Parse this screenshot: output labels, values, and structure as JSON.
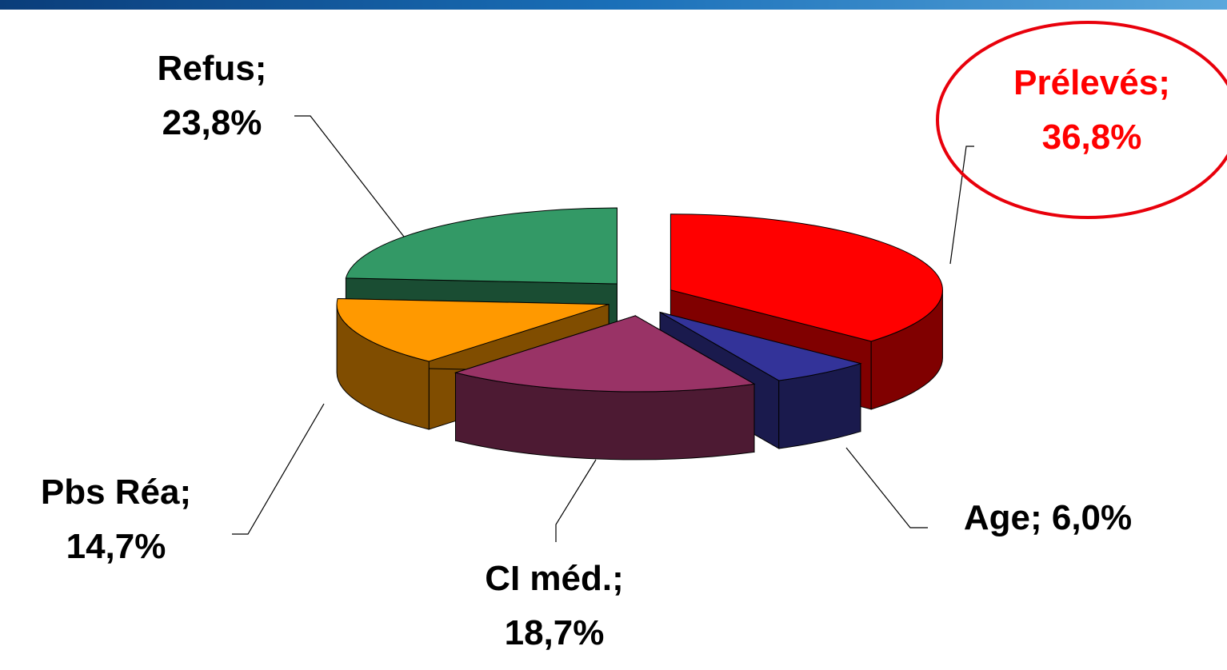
{
  "chart_data": {
    "type": "pie3d",
    "values": [
      36.8,
      6.0,
      18.7,
      14.7,
      23.8
    ],
    "value_labels": [
      "Prélevés; 36,8%",
      "Age; 6,0%",
      "CI méd.; 18,7%",
      "Pbs Réa; 14,7%",
      "Refus; 23,8%"
    ],
    "colors": [
      "#ff0000",
      "#333399",
      "#993366",
      "#ff9900",
      "#339966"
    ],
    "side_colors": [
      "#800000",
      "#1a1a4d",
      "#4d1a33",
      "#804d00",
      "#1a4d33"
    ],
    "label_colors": [
      "#ff0000",
      "#000000",
      "#000000",
      "#000000",
      "#000000"
    ]
  }
}
